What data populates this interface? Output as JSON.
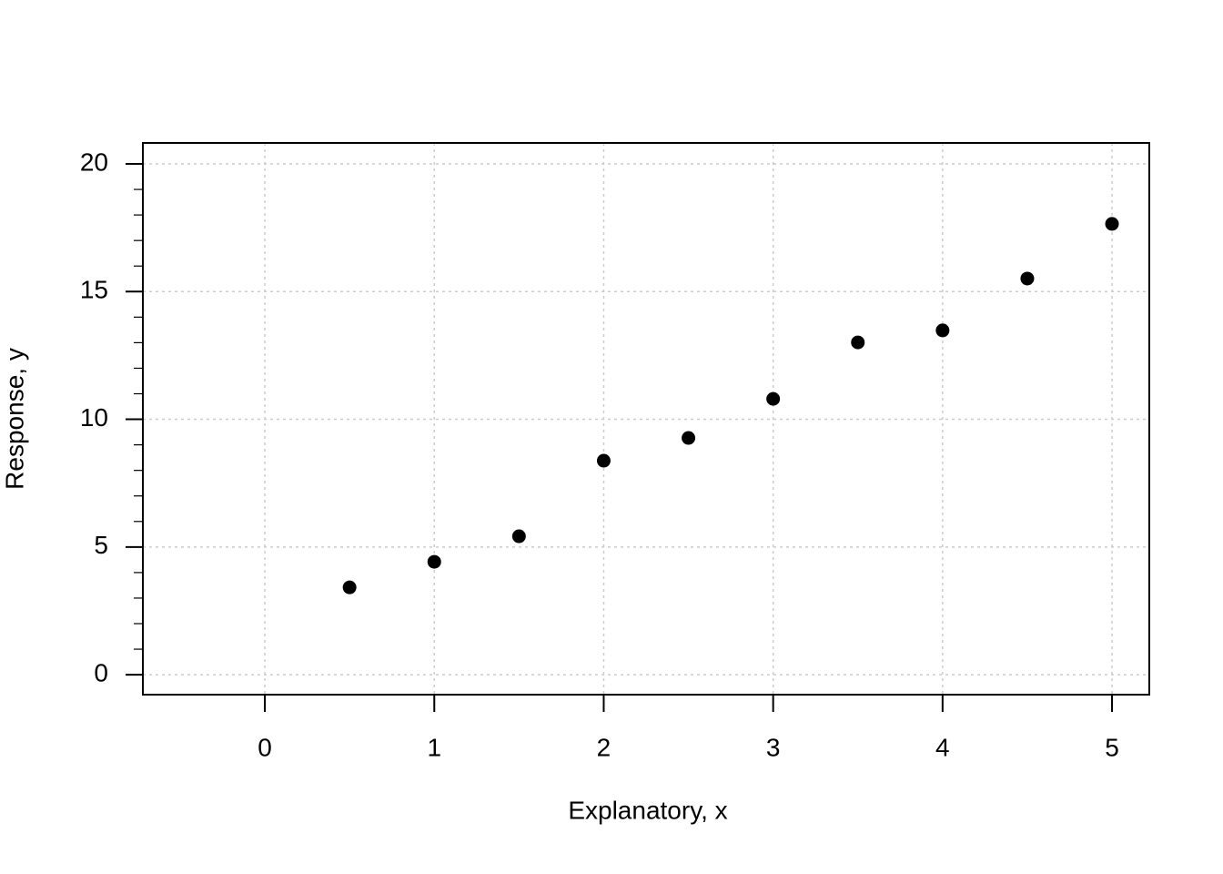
{
  "chart_data": {
    "type": "scatter",
    "x_label": "Explanatory, x",
    "y_label": "Response, y",
    "x": [
      0.5,
      1,
      1.5,
      2,
      2.5,
      3,
      3.5,
      4,
      4.5,
      5
    ],
    "values": [
      3.42,
      4.42,
      5.42,
      8.38,
      9.27,
      10.8,
      13.01,
      13.48,
      15.51,
      17.65
    ],
    "color": "#000000",
    "xlim": [
      -0.72,
      5.22
    ],
    "ylim": [
      -0.78,
      20.82
    ],
    "xticks": [
      0,
      1,
      2,
      3,
      4,
      5
    ],
    "yticks": [
      0,
      5,
      10,
      15,
      20
    ],
    "yminorticks": [
      1,
      2,
      3,
      4,
      6,
      7,
      8,
      9,
      11,
      12,
      13,
      14,
      16,
      17,
      18,
      19
    ],
    "grid": true
  }
}
